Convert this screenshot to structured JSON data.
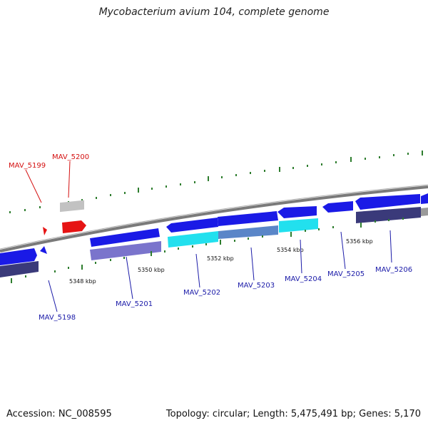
{
  "title": "Mycobacterium avium 104, complete genome",
  "footer": {
    "accession": "Accession: NC_008595",
    "summary": "Topology: circular; Length: 5,475,491 bp; Genes: 5,170"
  },
  "colors": {
    "forward_gene": "#1a1ae6",
    "forward_gene_dark": "#0a0a8c",
    "cyan_gene": "#22e0ee",
    "lavender_gene": "#7a74cc",
    "slate_gene": "#3a3a7a",
    "rna_gene": "#e61414",
    "pseudo_gene": "#c2c2c2",
    "backbone": "#888888",
    "tick_green": "#2e7d2e",
    "blue_label": "#1a1aa8",
    "red_label": "#d41010"
  },
  "scale_labels": [
    "5348 kbp",
    "5350 kbp",
    "5352 kbp",
    "5354 kbp",
    "5356 kbp"
  ],
  "genes": [
    {
      "label": "MAV_5198",
      "color": "blue"
    },
    {
      "label": "MAV_5199",
      "color": "red"
    },
    {
      "label": "MAV_5200",
      "color": "red"
    },
    {
      "label": "MAV_5201",
      "color": "blue"
    },
    {
      "label": "MAV_5202",
      "color": "blue"
    },
    {
      "label": "MAV_5203",
      "color": "blue"
    },
    {
      "label": "MAV_5204",
      "color": "blue"
    },
    {
      "label": "MAV_5205",
      "color": "blue"
    },
    {
      "label": "MAV_5206",
      "color": "blue"
    }
  ]
}
